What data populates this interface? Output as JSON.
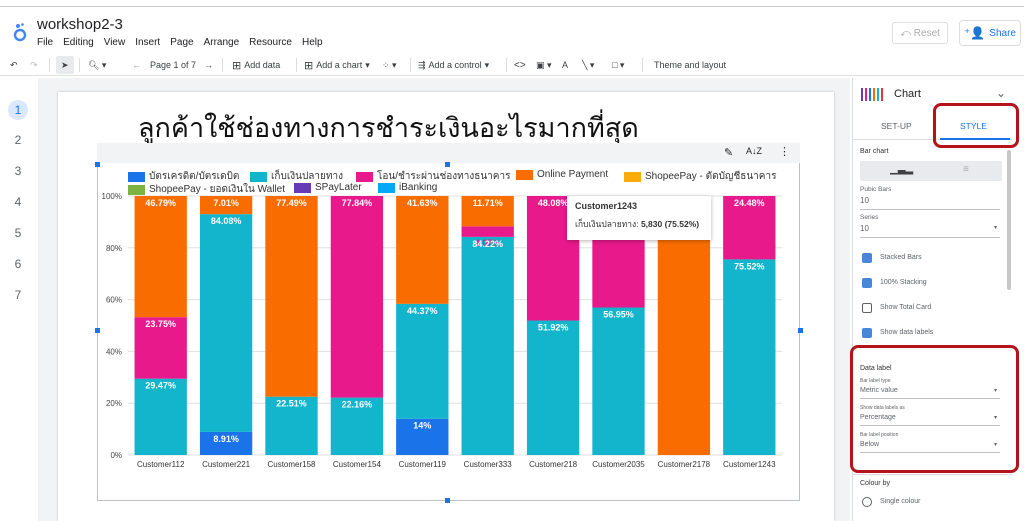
{
  "app": {
    "doc_title": "workshop2-3",
    "menu": [
      "File",
      "Editing",
      "View",
      "Insert",
      "Page",
      "Arrange",
      "Resource",
      "Help"
    ],
    "reset_label": "Reset",
    "share_label": "Share"
  },
  "toolbar": {
    "page_indicator": "Page 1 of 7",
    "add_data": "Add data",
    "add_chart": "Add a chart",
    "add_control": "Add a control",
    "theme_layout": "Theme and layout"
  },
  "pages": [
    "1",
    "2",
    "3",
    "4",
    "5",
    "6",
    "7"
  ],
  "report": {
    "title": "ลูกค้าใช้ช่องทางการชำระเงินอะไรมากที่สุด"
  },
  "chart_data": {
    "type": "bar",
    "stacked": true,
    "percent_stacked": true,
    "categories": [
      "Customer112",
      "Customer221",
      "Customer158",
      "Customer154",
      "Customer119",
      "Customer333",
      "Customer218",
      "Customer2035",
      "Customer2178",
      "Customer1243"
    ],
    "series": [
      {
        "name": "บัตรเครดิต/บัตรเดบิต",
        "color": "#1a73e8",
        "values": [
          0,
          8.91,
          0,
          0,
          14,
          0,
          0,
          0,
          0,
          0
        ]
      },
      {
        "name": "เก็บเงินปลายทาง",
        "color": "#12b5cb",
        "values": [
          29.47,
          84.08,
          22.51,
          22.16,
          44.37,
          84.22,
          51.92,
          56.95,
          0,
          75.52
        ]
      },
      {
        "name": "โอน/ชำระผ่านช่องทางธนาคาร",
        "color": "#e8198b",
        "values": [
          23.75,
          0,
          0,
          77.84,
          0,
          4.07,
          48.08,
          43.05,
          0,
          24.48
        ]
      },
      {
        "name": "Online Payment",
        "color": "#f96d00",
        "values": [
          46.79,
          7.01,
          77.49,
          0,
          41.63,
          11.71,
          0,
          0,
          100,
          0
        ]
      },
      {
        "name": "ShopeePay - ตัดบัญชีธนาคาร",
        "color": "#fbab0a",
        "values": [
          0,
          0,
          0,
          0,
          0,
          0,
          0,
          0,
          0,
          0
        ]
      },
      {
        "name": "ShopeePay - ยอดเงินใน Wallet",
        "color": "#7cb342",
        "values": [
          0,
          0,
          0,
          0,
          0,
          0,
          0,
          0,
          0,
          0
        ]
      },
      {
        "name": "SPayLater",
        "color": "#673ab7",
        "values": [
          0,
          0,
          0,
          0,
          0,
          0,
          0,
          0,
          0,
          0
        ]
      },
      {
        "name": "iBanking",
        "color": "#03a9f4",
        "values": [
          0,
          0,
          0,
          0,
          0,
          0,
          0,
          0,
          0,
          0
        ]
      }
    ],
    "data_labels": [
      {
        "cat": 0,
        "series": 3,
        "text": "46.79%"
      },
      {
        "cat": 0,
        "series": 2,
        "text": "23.75%"
      },
      {
        "cat": 0,
        "series": 1,
        "text": "29.47%"
      },
      {
        "cat": 1,
        "series": 3,
        "text": "7.01%"
      },
      {
        "cat": 1,
        "series": 1,
        "text": "84.08%"
      },
      {
        "cat": 1,
        "series": 0,
        "text": "8.91%"
      },
      {
        "cat": 2,
        "series": 3,
        "text": "77.49%"
      },
      {
        "cat": 2,
        "series": 1,
        "text": "22.51%"
      },
      {
        "cat": 3,
        "series": 2,
        "text": "77.84%"
      },
      {
        "cat": 3,
        "series": 1,
        "text": "22.16%"
      },
      {
        "cat": 4,
        "series": 3,
        "text": "41.63%"
      },
      {
        "cat": 4,
        "series": 1,
        "text": "44.37%"
      },
      {
        "cat": 4,
        "series": 0,
        "text": "14%"
      },
      {
        "cat": 5,
        "series": 3,
        "text": "11.71%"
      },
      {
        "cat": 5,
        "series": 2,
        "text": "4.07%"
      },
      {
        "cat": 5,
        "series": 1,
        "text": "84.22%"
      },
      {
        "cat": 6,
        "series": 2,
        "text": "48.08%"
      },
      {
        "cat": 6,
        "series": 1,
        "text": "51.92%"
      },
      {
        "cat": 7,
        "series": 1,
        "text": "56.95%"
      },
      {
        "cat": 9,
        "series": 2,
        "text": "24.48%"
      },
      {
        "cat": 9,
        "series": 1,
        "text": "75.52%"
      }
    ],
    "yticks": [
      "0%",
      "20%",
      "40%",
      "60%",
      "80%",
      "100%"
    ],
    "ylim": [
      0,
      100
    ],
    "legend_position": "top"
  },
  "tooltip": {
    "title": "Customer1243",
    "line_label": "เก็บเงินปลายทาง:",
    "line_value": "5,830 (75.52%)"
  },
  "panel": {
    "type_label": "Chart",
    "tab_setup": "SET-UP",
    "tab_style": "STYLE",
    "section_bar_chart": "Bar chart",
    "bars_label": "Pubic Bars",
    "bars_value": "10",
    "series_label": "Series",
    "series_value": "10",
    "checkboxes": [
      {
        "label": "Stacked Bars",
        "checked": true
      },
      {
        "label": "100% Stacking",
        "checked": true
      },
      {
        "label": "Show Total Card",
        "checked": false
      },
      {
        "label": "Show data labels",
        "checked": true
      }
    ],
    "data_label_section": "Data label",
    "bar_label_type_label": "Bar label type",
    "bar_label_type_value": "Metric value",
    "show_labels_as_label": "Show data labels as",
    "show_labels_as_value": "Percentage",
    "label_position_label": "Bar label position",
    "label_position_value": "Below",
    "colour_by_label": "Colour by",
    "colour_option": "Single colour"
  }
}
